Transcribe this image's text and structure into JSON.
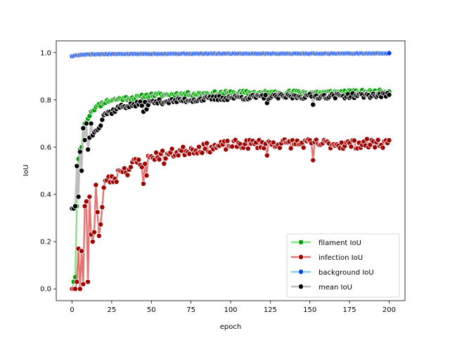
{
  "chart_data": {
    "type": "line",
    "title": "",
    "xlabel": "epoch",
    "ylabel": "IoU",
    "xlim": [
      -10,
      210
    ],
    "ylim": [
      -0.05,
      1.05
    ],
    "xticks": [
      "0",
      "25",
      "50",
      "75",
      "100",
      "125",
      "150",
      "175",
      "200"
    ],
    "yticks": [
      "0.0",
      "0.2",
      "0.4",
      "0.6",
      "0.8",
      "1.0"
    ],
    "grid": false,
    "legend_position": "lower-right",
    "markers": "circle",
    "series": [
      {
        "name": "filament IoU",
        "line_color": "#7fe57f",
        "marker_color": "#00a000",
        "anchors": [
          [
            0,
            0.0
          ],
          [
            1,
            0.03
          ],
          [
            2,
            0.05
          ],
          [
            3,
            0.35
          ],
          [
            4,
            0.55
          ],
          [
            5,
            0.59
          ],
          [
            6,
            0.6
          ],
          [
            7,
            0.68
          ],
          [
            8,
            0.7
          ],
          [
            10,
            0.72
          ],
          [
            12,
            0.75
          ],
          [
            15,
            0.77
          ],
          [
            18,
            0.78
          ],
          [
            20,
            0.79
          ],
          [
            25,
            0.8
          ],
          [
            30,
            0.805
          ],
          [
            40,
            0.81
          ],
          [
            50,
            0.82
          ],
          [
            75,
            0.825
          ],
          [
            100,
            0.83
          ],
          [
            150,
            0.832
          ],
          [
            200,
            0.835
          ]
        ],
        "noise": 0.008,
        "seed": 11
      },
      {
        "name": "infection IoU",
        "line_color": "#e57373",
        "marker_color": "#a00000",
        "anchors": [
          [
            0,
            0.0
          ],
          [
            1,
            0.0
          ],
          [
            2,
            0.0
          ],
          [
            3,
            0.03
          ],
          [
            4,
            0.17
          ],
          [
            5,
            0.0
          ],
          [
            6,
            0.16
          ],
          [
            7,
            0.02
          ],
          [
            8,
            0.35
          ],
          [
            9,
            0.37
          ],
          [
            10,
            0.03
          ],
          [
            11,
            0.39
          ],
          [
            12,
            0.23
          ],
          [
            13,
            0.2
          ],
          [
            14,
            0.24
          ],
          [
            15,
            0.44
          ],
          [
            17,
            0.23
          ],
          [
            18,
            0.27
          ],
          [
            20,
            0.42
          ],
          [
            22,
            0.47
          ],
          [
            25,
            0.46
          ],
          [
            28,
            0.47
          ],
          [
            30,
            0.51
          ],
          [
            35,
            0.5
          ],
          [
            40,
            0.54
          ],
          [
            45,
            0.53
          ],
          [
            50,
            0.56
          ],
          [
            60,
            0.57
          ],
          [
            75,
            0.59
          ],
          [
            90,
            0.6
          ],
          [
            100,
            0.61
          ],
          [
            125,
            0.615
          ],
          [
            150,
            0.615
          ],
          [
            175,
            0.612
          ],
          [
            200,
            0.618
          ]
        ],
        "noise": 0.02,
        "seed": 23,
        "dips": [
          [
            45,
            0.445
          ],
          [
            47,
            0.48
          ],
          [
            58,
            0.53
          ],
          [
            123,
            0.565
          ],
          [
            152,
            0.545
          ]
        ]
      },
      {
        "name": "background IoU",
        "line_color": "#87cfee",
        "marker_color": "#0040ff",
        "anchors": [
          [
            0,
            0.985
          ],
          [
            2,
            0.988
          ],
          [
            5,
            0.99
          ],
          [
            10,
            0.993
          ],
          [
            25,
            0.994
          ],
          [
            50,
            0.995
          ],
          [
            100,
            0.996
          ],
          [
            150,
            0.996
          ],
          [
            200,
            0.997
          ]
        ],
        "noise": 0.001,
        "seed": 5
      },
      {
        "name": "mean IoU",
        "line_color": "#bdbdbd",
        "marker_color": "#000000",
        "anchors": [
          [
            0,
            0.34
          ],
          [
            1,
            0.34
          ],
          [
            2,
            0.35
          ],
          [
            3,
            0.52
          ],
          [
            4,
            0.39
          ],
          [
            5,
            0.58
          ],
          [
            6,
            0.5
          ],
          [
            7,
            0.68
          ],
          [
            8,
            0.63
          ],
          [
            9,
            0.7
          ],
          [
            10,
            0.59
          ],
          [
            12,
            0.7
          ],
          [
            13,
            0.65
          ],
          [
            15,
            0.67
          ],
          [
            18,
            0.7
          ],
          [
            20,
            0.74
          ],
          [
            25,
            0.75
          ],
          [
            30,
            0.77
          ],
          [
            40,
            0.78
          ],
          [
            50,
            0.79
          ],
          [
            75,
            0.8
          ],
          [
            100,
            0.81
          ],
          [
            150,
            0.815
          ],
          [
            200,
            0.82
          ]
        ],
        "noise": 0.01,
        "seed": 37,
        "dips": [
          [
            45,
            0.75
          ],
          [
            47,
            0.76
          ],
          [
            123,
            0.787
          ],
          [
            152,
            0.78
          ]
        ]
      }
    ]
  }
}
